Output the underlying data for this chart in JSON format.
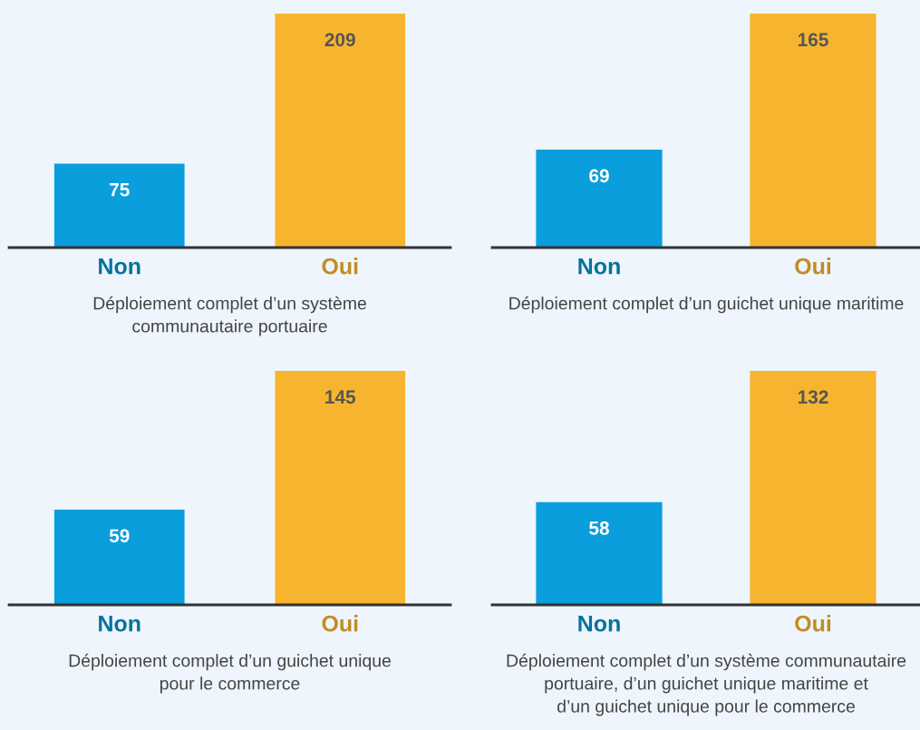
{
  "chart_data": [
    {
      "type": "bar",
      "categories": [
        "Non",
        "Oui"
      ],
      "values": [
        75,
        209
      ],
      "colors": [
        "#0a9edc",
        "#f7b52f"
      ],
      "data_labels": true,
      "xlabel": "Déploiement complet d’un système\ncommunautaire portuaire"
    },
    {
      "type": "bar",
      "categories": [
        "Non",
        "Oui"
      ],
      "values": [
        69,
        165
      ],
      "colors": [
        "#0a9edc",
        "#f7b52f"
      ],
      "data_labels": true,
      "xlabel": "Déploiement complet d’un guichet unique maritime"
    },
    {
      "type": "bar",
      "categories": [
        "Non",
        "Oui"
      ],
      "values": [
        59,
        145
      ],
      "colors": [
        "#0a9edc",
        "#f7b52f"
      ],
      "data_labels": true,
      "xlabel": "Déploiement complet d’un guichet unique\npour le commerce"
    },
    {
      "type": "bar",
      "categories": [
        "Non",
        "Oui"
      ],
      "values": [
        58,
        132
      ],
      "colors": [
        "#0a9edc",
        "#f7b52f"
      ],
      "data_labels": true,
      "xlabel": "Déploiement complet d’un système communautaire\nportuaire, d’un guichet unique maritime et\nd’un guichet unique pour le commerce"
    }
  ]
}
